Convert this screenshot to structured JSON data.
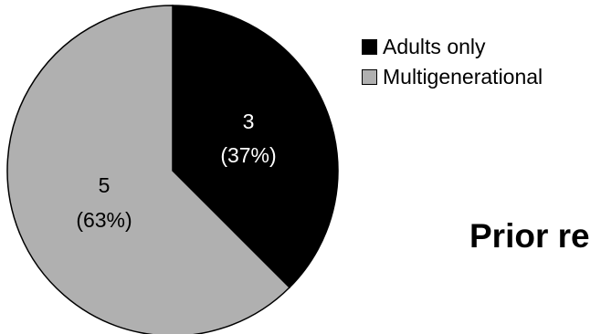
{
  "chart_data": {
    "type": "pie",
    "series": [
      {
        "name": "Adults only",
        "value": 3,
        "percent": 37,
        "color": "#000000"
      },
      {
        "name": "Multigenerational",
        "value": 5,
        "percent": 63,
        "color": "#b0b0b0"
      }
    ],
    "data_labels": [
      {
        "count": "3",
        "percent": "(37%)"
      },
      {
        "count": "5",
        "percent": "(63%)"
      }
    ],
    "legend_position": "top-right",
    "start_angle_deg": 0,
    "direction": "clockwise"
  },
  "partial_title": "Prior re"
}
